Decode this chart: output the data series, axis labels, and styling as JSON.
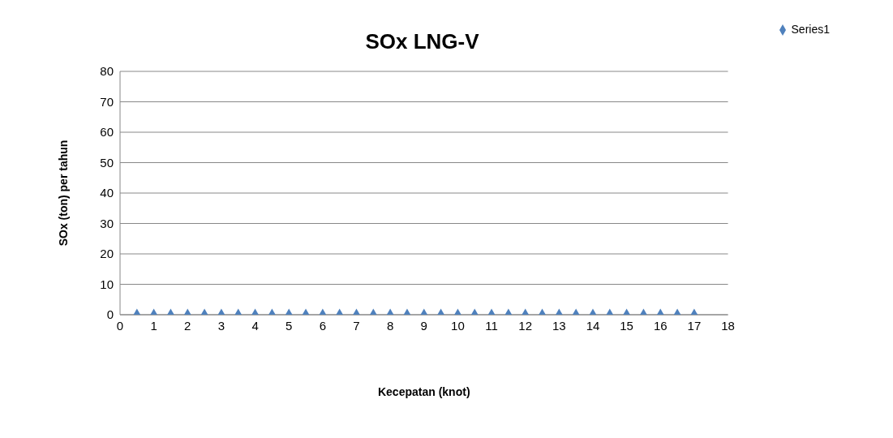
{
  "chart_data": {
    "type": "scatter",
    "title": "SOx LNG-V",
    "xlabel": "Kecepatan (knot)",
    "ylabel": "SOx (ton) per tahun",
    "x": [
      0.5,
      1,
      1.5,
      2,
      2.5,
      3,
      3.5,
      4,
      4.5,
      5,
      5.5,
      6,
      6.5,
      7,
      7.5,
      8,
      8.5,
      9,
      9.5,
      10,
      10.5,
      11,
      11.5,
      12,
      12.5,
      13,
      13.5,
      14,
      14.5,
      15,
      15.5,
      16,
      16.5,
      17
    ],
    "series": [
      {
        "name": "Series1",
        "color": "#4f81bd",
        "values": [
          0,
          0,
          0,
          0,
          0,
          0,
          0,
          0,
          0,
          0,
          0,
          0,
          0,
          0,
          0,
          0,
          0,
          0,
          0,
          0,
          0,
          0,
          0,
          0,
          0,
          0,
          0,
          0,
          0,
          0,
          0,
          0,
          0,
          0
        ]
      }
    ],
    "xlim": [
      0,
      18
    ],
    "xticks": [
      0,
      1,
      2,
      3,
      4,
      5,
      6,
      7,
      8,
      9,
      10,
      11,
      12,
      13,
      14,
      15,
      16,
      17,
      18
    ],
    "ylim": [
      0,
      80
    ],
    "yticks": [
      0,
      10,
      20,
      30,
      40,
      50,
      60,
      70,
      80
    ],
    "grid": "y",
    "legend": "top right",
    "marker": "diamond"
  }
}
